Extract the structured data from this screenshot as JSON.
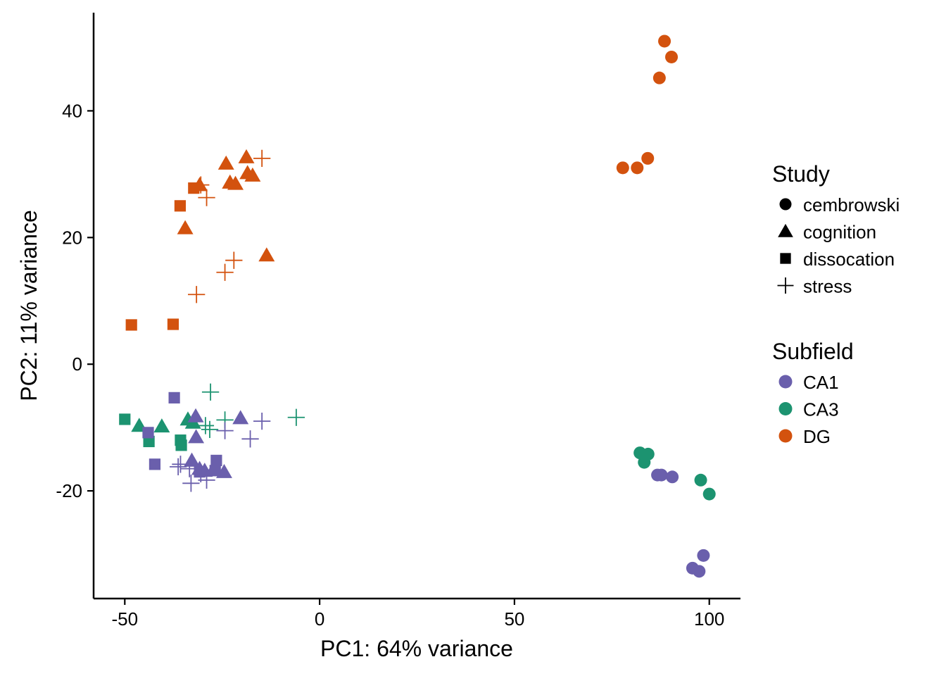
{
  "chart_data": {
    "type": "scatter",
    "title": "",
    "xlabel": "PC1: 64% variance",
    "ylabel": "PC2: 11% variance",
    "xlim": [
      -58,
      108
    ],
    "ylim": [
      -37,
      55.5
    ],
    "xticks": [
      -50,
      0,
      50,
      100
    ],
    "yticks": [
      -20,
      0,
      20,
      40
    ],
    "xtick_labels": [
      "-50",
      "0",
      "50",
      "100"
    ],
    "ytick_labels": [
      "-20",
      "0",
      "20",
      "40"
    ],
    "grid": false,
    "legend_position": "right",
    "legend": {
      "shape_title": "Study",
      "shape_entries": [
        {
          "label": "cembrowski",
          "shape": "circle"
        },
        {
          "label": "cognition",
          "shape": "triangle"
        },
        {
          "label": "dissocation",
          "shape": "square"
        },
        {
          "label": "stress",
          "shape": "plus"
        }
      ],
      "color_title": "Subfield",
      "color_entries": [
        {
          "label": "CA1",
          "color": "#6a5fac"
        },
        {
          "label": "CA3",
          "color": "#1c9370"
        },
        {
          "label": "DG",
          "color": "#d3520e"
        }
      ]
    },
    "points": [
      {
        "x": 88.5,
        "y": 51.0,
        "study": "cembrowski",
        "subfield": "DG"
      },
      {
        "x": 90.3,
        "y": 48.5,
        "study": "cembrowski",
        "subfield": "DG"
      },
      {
        "x": 87.2,
        "y": 45.2,
        "study": "cembrowski",
        "subfield": "DG"
      },
      {
        "x": 84.2,
        "y": 32.5,
        "study": "cembrowski",
        "subfield": "DG"
      },
      {
        "x": 77.8,
        "y": 31.0,
        "study": "cembrowski",
        "subfield": "DG"
      },
      {
        "x": 81.5,
        "y": 31.0,
        "study": "cembrowski",
        "subfield": "DG"
      },
      {
        "x": 82.2,
        "y": -14.0,
        "study": "cembrowski",
        "subfield": "CA3"
      },
      {
        "x": 84.3,
        "y": -14.2,
        "study": "cembrowski",
        "subfield": "CA3"
      },
      {
        "x": 83.3,
        "y": -15.5,
        "study": "cembrowski",
        "subfield": "CA3"
      },
      {
        "x": 97.8,
        "y": -18.3,
        "study": "cembrowski",
        "subfield": "CA3"
      },
      {
        "x": 100.0,
        "y": -20.5,
        "study": "cembrowski",
        "subfield": "CA3"
      },
      {
        "x": 86.7,
        "y": -17.5,
        "study": "cembrowski",
        "subfield": "CA1"
      },
      {
        "x": 87.7,
        "y": -17.5,
        "study": "cembrowski",
        "subfield": "CA1"
      },
      {
        "x": 90.5,
        "y": -17.8,
        "study": "cembrowski",
        "subfield": "CA1"
      },
      {
        "x": 98.5,
        "y": -30.2,
        "study": "cembrowski",
        "subfield": "CA1"
      },
      {
        "x": 95.7,
        "y": -32.2,
        "study": "cembrowski",
        "subfield": "CA1"
      },
      {
        "x": 97.4,
        "y": -32.7,
        "study": "cembrowski",
        "subfield": "CA1"
      },
      {
        "x": -24.0,
        "y": 31.7,
        "study": "cognition",
        "subfield": "DG"
      },
      {
        "x": -18.8,
        "y": 32.7,
        "study": "cognition",
        "subfield": "DG"
      },
      {
        "x": -30.8,
        "y": 28.3,
        "study": "cognition",
        "subfield": "DG"
      },
      {
        "x": -23.0,
        "y": 28.7,
        "study": "cognition",
        "subfield": "DG"
      },
      {
        "x": -21.6,
        "y": 28.5,
        "study": "cognition",
        "subfield": "DG"
      },
      {
        "x": -18.5,
        "y": 30.2,
        "study": "cognition",
        "subfield": "DG"
      },
      {
        "x": -17.2,
        "y": 29.8,
        "study": "cognition",
        "subfield": "DG"
      },
      {
        "x": -34.5,
        "y": 21.5,
        "study": "cognition",
        "subfield": "DG"
      },
      {
        "x": -13.6,
        "y": 17.2,
        "study": "cognition",
        "subfield": "DG"
      },
      {
        "x": -46.3,
        "y": -9.7,
        "study": "cognition",
        "subfield": "CA3"
      },
      {
        "x": -40.5,
        "y": -9.8,
        "study": "cognition",
        "subfield": "CA3"
      },
      {
        "x": -33.8,
        "y": -8.7,
        "study": "cognition",
        "subfield": "CA3"
      },
      {
        "x": -32.5,
        "y": -9.2,
        "study": "cognition",
        "subfield": "CA3"
      },
      {
        "x": -31.8,
        "y": -8.2,
        "study": "cognition",
        "subfield": "CA1"
      },
      {
        "x": -31.7,
        "y": -11.5,
        "study": "cognition",
        "subfield": "CA1"
      },
      {
        "x": -20.3,
        "y": -8.5,
        "study": "cognition",
        "subfield": "CA1"
      },
      {
        "x": -32.8,
        "y": -15.2,
        "study": "cognition",
        "subfield": "CA1"
      },
      {
        "x": -30.8,
        "y": -16.5,
        "study": "cognition",
        "subfield": "CA1"
      },
      {
        "x": -29.5,
        "y": -16.8,
        "study": "cognition",
        "subfield": "CA1"
      },
      {
        "x": -27.0,
        "y": -16.3,
        "study": "cognition",
        "subfield": "CA1"
      },
      {
        "x": -24.5,
        "y": -17.0,
        "study": "cognition",
        "subfield": "CA1"
      },
      {
        "x": -32.3,
        "y": 27.8,
        "study": "dissocation",
        "subfield": "DG"
      },
      {
        "x": -35.8,
        "y": 25.0,
        "study": "dissocation",
        "subfield": "DG"
      },
      {
        "x": -48.3,
        "y": 6.2,
        "study": "dissocation",
        "subfield": "DG"
      },
      {
        "x": -37.6,
        "y": 6.3,
        "study": "dissocation",
        "subfield": "DG"
      },
      {
        "x": -50.0,
        "y": -8.7,
        "study": "dissocation",
        "subfield": "CA3"
      },
      {
        "x": -43.8,
        "y": -12.2,
        "study": "dissocation",
        "subfield": "CA3"
      },
      {
        "x": -35.7,
        "y": -12.0,
        "study": "dissocation",
        "subfield": "CA3"
      },
      {
        "x": -35.5,
        "y": -12.8,
        "study": "dissocation",
        "subfield": "CA3"
      },
      {
        "x": -37.3,
        "y": -5.3,
        "study": "dissocation",
        "subfield": "CA1"
      },
      {
        "x": -44.0,
        "y": -10.8,
        "study": "dissocation",
        "subfield": "CA1"
      },
      {
        "x": -42.3,
        "y": -15.8,
        "study": "dissocation",
        "subfield": "CA1"
      },
      {
        "x": -26.5,
        "y": -15.2,
        "study": "dissocation",
        "subfield": "CA1"
      },
      {
        "x": -30.8,
        "y": -17.0,
        "study": "dissocation",
        "subfield": "CA1"
      },
      {
        "x": -26.8,
        "y": -16.8,
        "study": "dissocation",
        "subfield": "CA1"
      },
      {
        "x": -14.8,
        "y": 32.5,
        "study": "stress",
        "subfield": "DG"
      },
      {
        "x": -30.5,
        "y": 28.3,
        "study": "stress",
        "subfield": "DG"
      },
      {
        "x": -29.0,
        "y": 26.3,
        "study": "stress",
        "subfield": "DG"
      },
      {
        "x": -22.0,
        "y": 16.4,
        "study": "stress",
        "subfield": "DG"
      },
      {
        "x": -24.3,
        "y": 14.5,
        "study": "stress",
        "subfield": "DG"
      },
      {
        "x": -31.6,
        "y": 11.0,
        "study": "stress",
        "subfield": "DG"
      },
      {
        "x": -28.0,
        "y": -4.4,
        "study": "stress",
        "subfield": "CA3"
      },
      {
        "x": -6.0,
        "y": -8.4,
        "study": "stress",
        "subfield": "CA3"
      },
      {
        "x": -24.3,
        "y": -8.8,
        "study": "stress",
        "subfield": "CA3"
      },
      {
        "x": -29.3,
        "y": -9.7,
        "study": "stress",
        "subfield": "CA3"
      },
      {
        "x": -28.2,
        "y": -10.3,
        "study": "stress",
        "subfield": "CA3"
      },
      {
        "x": -14.8,
        "y": -9.0,
        "study": "stress",
        "subfield": "CA1"
      },
      {
        "x": -24.3,
        "y": -10.5,
        "study": "stress",
        "subfield": "CA1"
      },
      {
        "x": -17.8,
        "y": -11.8,
        "study": "stress",
        "subfield": "CA1"
      },
      {
        "x": -35.7,
        "y": -15.8,
        "study": "stress",
        "subfield": "CA1"
      },
      {
        "x": -36.3,
        "y": -16.2,
        "study": "stress",
        "subfield": "CA1"
      },
      {
        "x": -33.4,
        "y": -16.5,
        "study": "stress",
        "subfield": "CA1"
      },
      {
        "x": -30.5,
        "y": -17.3,
        "study": "stress",
        "subfield": "CA1"
      },
      {
        "x": -33.0,
        "y": -18.8,
        "study": "stress",
        "subfield": "CA1"
      },
      {
        "x": -29.0,
        "y": -18.3,
        "study": "stress",
        "subfield": "CA1"
      }
    ]
  }
}
